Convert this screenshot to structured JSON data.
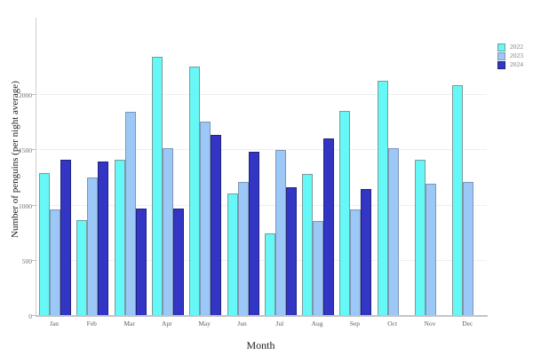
{
  "figure": {
    "x_axis_title": "Month",
    "y_axis_title": "Number of penguins (per night average)"
  },
  "chart_data": {
    "type": "bar",
    "title": "",
    "xlabel": "Month",
    "ylabel": "Number of penguins (per night average)",
    "categories": [
      "Jan",
      "Feb",
      "Mar",
      "Apr",
      "May",
      "Jun",
      "Jul",
      "Aug",
      "Sep",
      "Oct",
      "Nov",
      "Dec"
    ],
    "series": [
      {
        "name": "2022",
        "color": "#66F7F7",
        "border_color": "#7a9a9a",
        "values": [
          1280,
          850,
          1400,
          2330,
          2240,
          1090,
          730,
          1270,
          1840,
          2110,
          1400,
          2070
        ]
      },
      {
        "name": "2023",
        "color": "#9CC8F7",
        "border_color": "#7e95b6",
        "values": [
          950,
          1240,
          1830,
          1500,
          1740,
          1200,
          1490,
          840,
          950,
          1500,
          1180,
          1200
        ]
      },
      {
        "name": "2024",
        "color": "#3335C4",
        "border_color": "#22247e",
        "values": [
          1400,
          1380,
          960,
          960,
          1620,
          1470,
          1150,
          1590,
          1130,
          null,
          null,
          null
        ]
      }
    ],
    "ylim": [
      0,
      2700
    ],
    "yticks": [
      0,
      500,
      1000,
      1500,
      2000
    ],
    "grid": true,
    "legend_position": "top-right-outside"
  }
}
